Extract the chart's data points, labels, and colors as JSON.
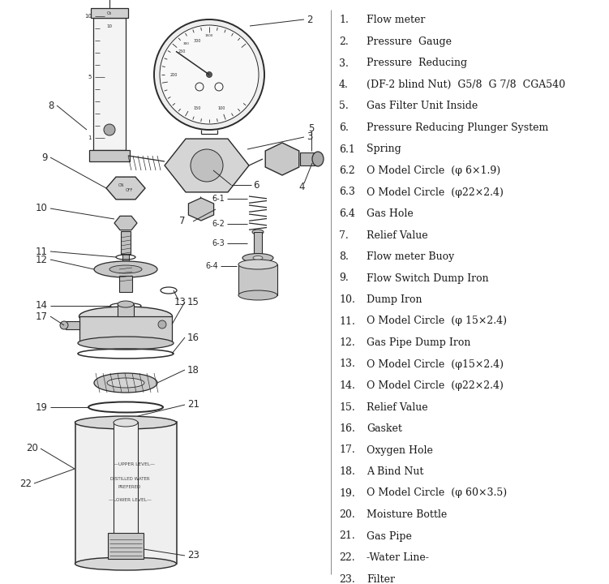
{
  "bg_color": "#ffffff",
  "line_color": "#2a2a2a",
  "label_color": "#1a1a1a",
  "legend_items": [
    {
      "num": "1.",
      "text": "Flow meter"
    },
    {
      "num": "2.",
      "text": "Pressure  Gauge"
    },
    {
      "num": "3.",
      "text": "Pressure  Reducing"
    },
    {
      "num": "4.",
      "text": "(DF-2 blind Nut)  G5/8  G 7/8  CGA540"
    },
    {
      "num": "5.",
      "text": "Gas Filter Unit Inside"
    },
    {
      "num": "6.",
      "text": "Pressure Reducing Plunger System"
    },
    {
      "num": "6.1",
      "text": "Spring"
    },
    {
      "num": "6.2",
      "text": "O Model Circle  (φ 6×1.9)"
    },
    {
      "num": "6.3",
      "text": "O Model Circle  (φ22×2.4)"
    },
    {
      "num": "6.4",
      "text": "Gas Hole"
    },
    {
      "num": "7.",
      "text": "Relief Value"
    },
    {
      "num": "8.",
      "text": "Flow meter Buoy"
    },
    {
      "num": "9.",
      "text": "Flow Switch Dump Iron"
    },
    {
      "num": "10.",
      "text": "Dump Iron"
    },
    {
      "num": "11.",
      "text": "O Model Circle  (φ 15×2.4)"
    },
    {
      "num": "12.",
      "text": "Gas Pipe Dump Iron"
    },
    {
      "num": "13.",
      "text": "O Model Circle  (φ15×2.4)"
    },
    {
      "num": "14.",
      "text": "O Model Circle  (φ22×2.4)"
    },
    {
      "num": "15.",
      "text": "Relief Value"
    },
    {
      "num": "16.",
      "text": "Gasket"
    },
    {
      "num": "17.",
      "text": "Oxygen Hole"
    },
    {
      "num": "18.",
      "text": "A Bind Nut"
    },
    {
      "num": "19.",
      "text": "O Model Circle  (φ 60×3.5)"
    },
    {
      "num": "20.",
      "text": "Moisture Bottle"
    },
    {
      "num": "21.",
      "text": "Gas Pipe"
    },
    {
      "num": "22.",
      "text": "-Water Line-"
    },
    {
      "num": "23.",
      "text": "Filter"
    }
  ],
  "figsize": [
    7.51,
    7.2
  ],
  "dpi": 100
}
